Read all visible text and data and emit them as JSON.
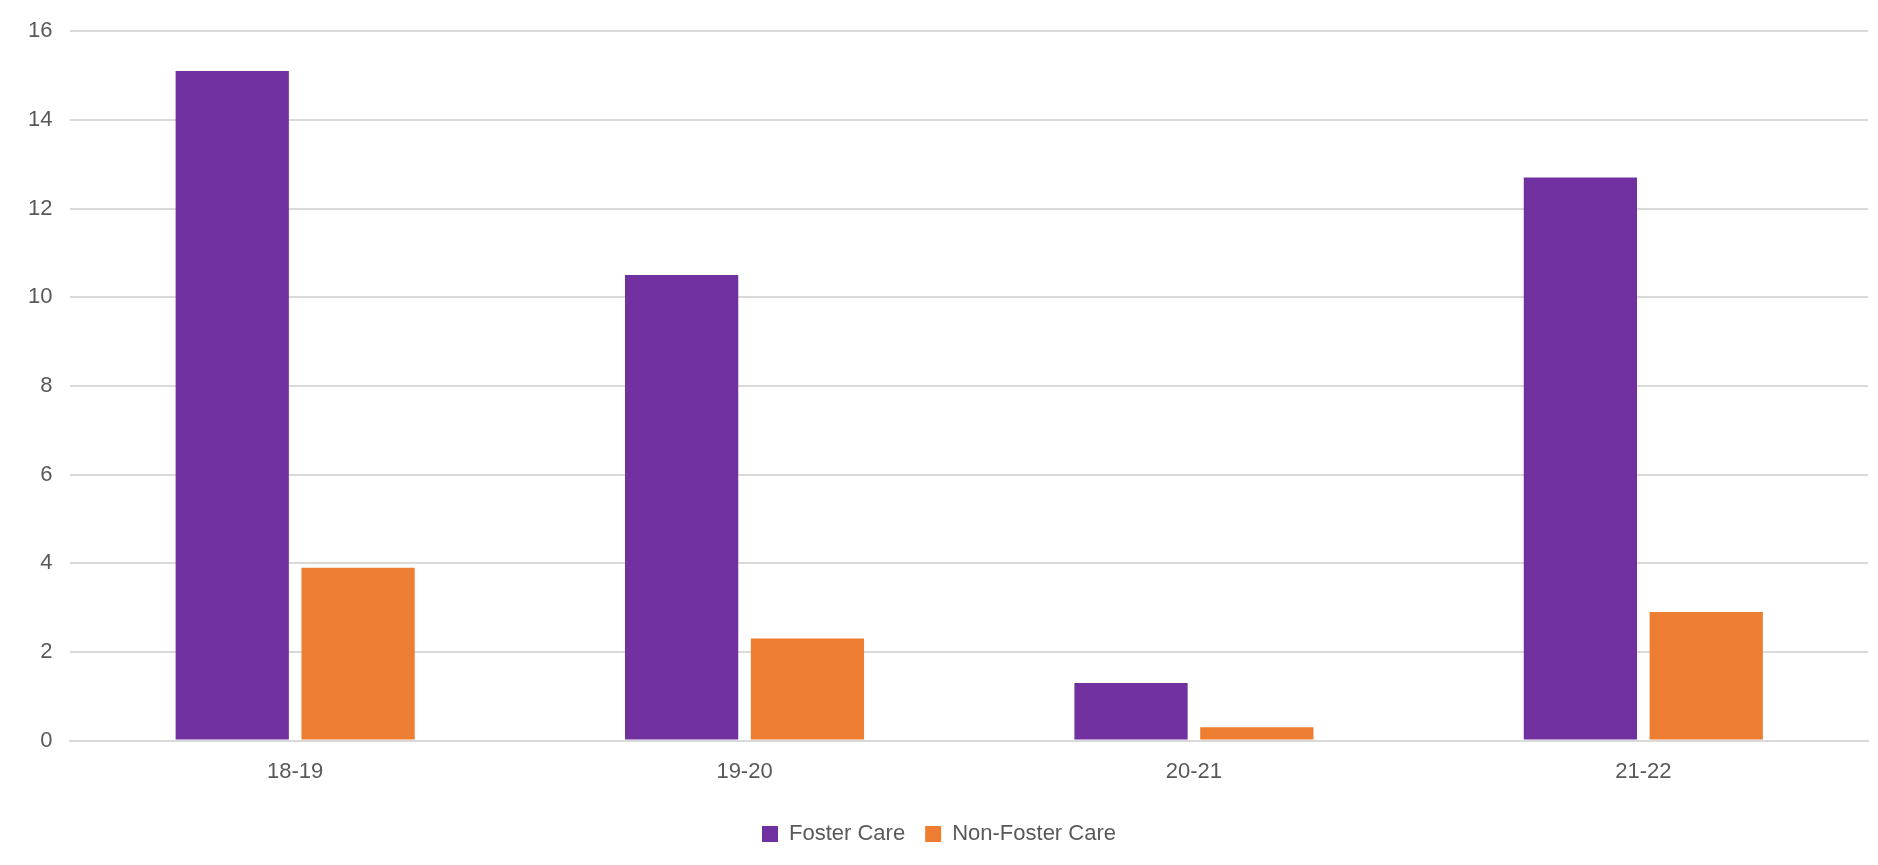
{
  "chart_data": {
    "type": "bar",
    "categories": [
      "18-19",
      "19-20",
      "20-21",
      "21-22"
    ],
    "series": [
      {
        "name": "Foster Care",
        "color": "#7030a0",
        "values": [
          15.1,
          10.5,
          1.3,
          12.7
        ]
      },
      {
        "name": "Non-Foster Care",
        "color": "#ed7d31",
        "values": [
          3.9,
          2.3,
          0.3,
          2.9
        ]
      }
    ],
    "ylim": [
      0,
      16
    ],
    "yticks": [
      0,
      2,
      4,
      6,
      8,
      10,
      12,
      14,
      16
    ],
    "grid": "y",
    "legend": "bottom"
  }
}
